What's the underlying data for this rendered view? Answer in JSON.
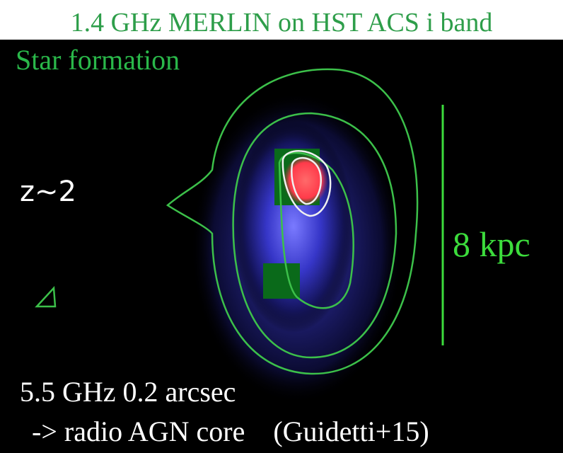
{
  "title": "1.4 GHz MERLIN on HST ACS i band",
  "labels": {
    "star_formation": "Star formation",
    "redshift": "z~2",
    "scale": "8 kpc",
    "caption_line1": "5.5 GHz 0.2 arcsec",
    "caption_line2": "-> radio AGN core    (Guidetti+15)"
  }
}
